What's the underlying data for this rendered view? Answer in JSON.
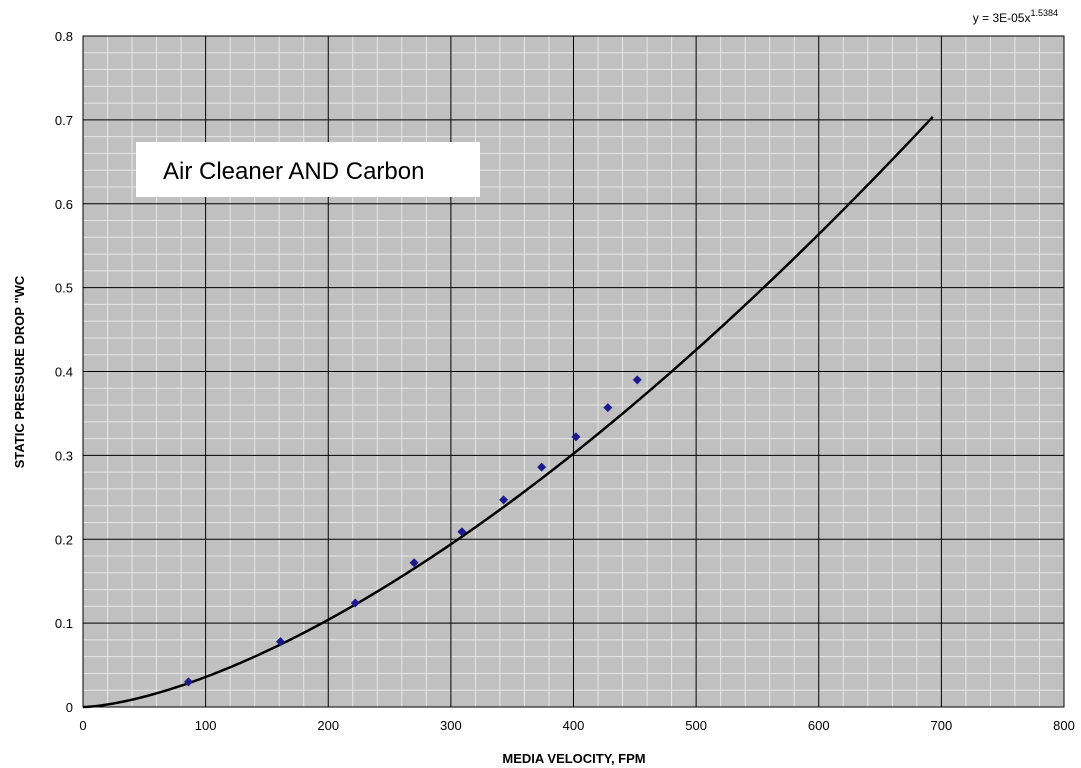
{
  "chart_data": {
    "type": "scatter",
    "title": "",
    "annotation": "Air Cleaner AND Carbon",
    "equation": {
      "prefix": "y = 3E-05x",
      "exponent": "1.5384",
      "coefficient": 3e-05,
      "power": 1.5384
    },
    "xlabel": "MEDIA VELOCITY, FPM",
    "ylabel": "STATIC PRESSURE DROP \"WC",
    "xlim": [
      0,
      800
    ],
    "ylim": [
      0,
      0.8
    ],
    "xticks": [
      0,
      100,
      200,
      300,
      400,
      500,
      600,
      700,
      800
    ],
    "xtick_labels": [
      "0",
      "100",
      "200",
      "300",
      "400",
      "500",
      "600",
      "700",
      "800"
    ],
    "yticks": [
      0,
      0.1,
      0.2,
      0.3,
      0.4,
      0.5,
      0.6,
      0.7,
      0.8
    ],
    "ytick_labels": [
      "0",
      "0.1",
      "0.2",
      "0.3",
      "0.4",
      "0.5",
      "0.6",
      "0.7",
      "0.8"
    ],
    "grid": true,
    "series": [
      {
        "type": "scatter",
        "x": [
          86,
          161,
          222,
          270,
          309,
          343,
          374,
          402,
          428,
          452
        ],
        "y": [
          0.03,
          0.078,
          0.124,
          0.172,
          0.209,
          0.247,
          0.286,
          0.322,
          0.357,
          0.39
        ],
        "color": "#1a1a8c"
      },
      {
        "type": "power_trendline",
        "x_range": [
          0,
          693
        ],
        "color": "#000000"
      }
    ],
    "colors": {
      "plot_background": "#c0c0c0",
      "major_grid": "#000000",
      "minor_grid": "#e6e6e6",
      "annotation_box": "#ffffff"
    }
  }
}
